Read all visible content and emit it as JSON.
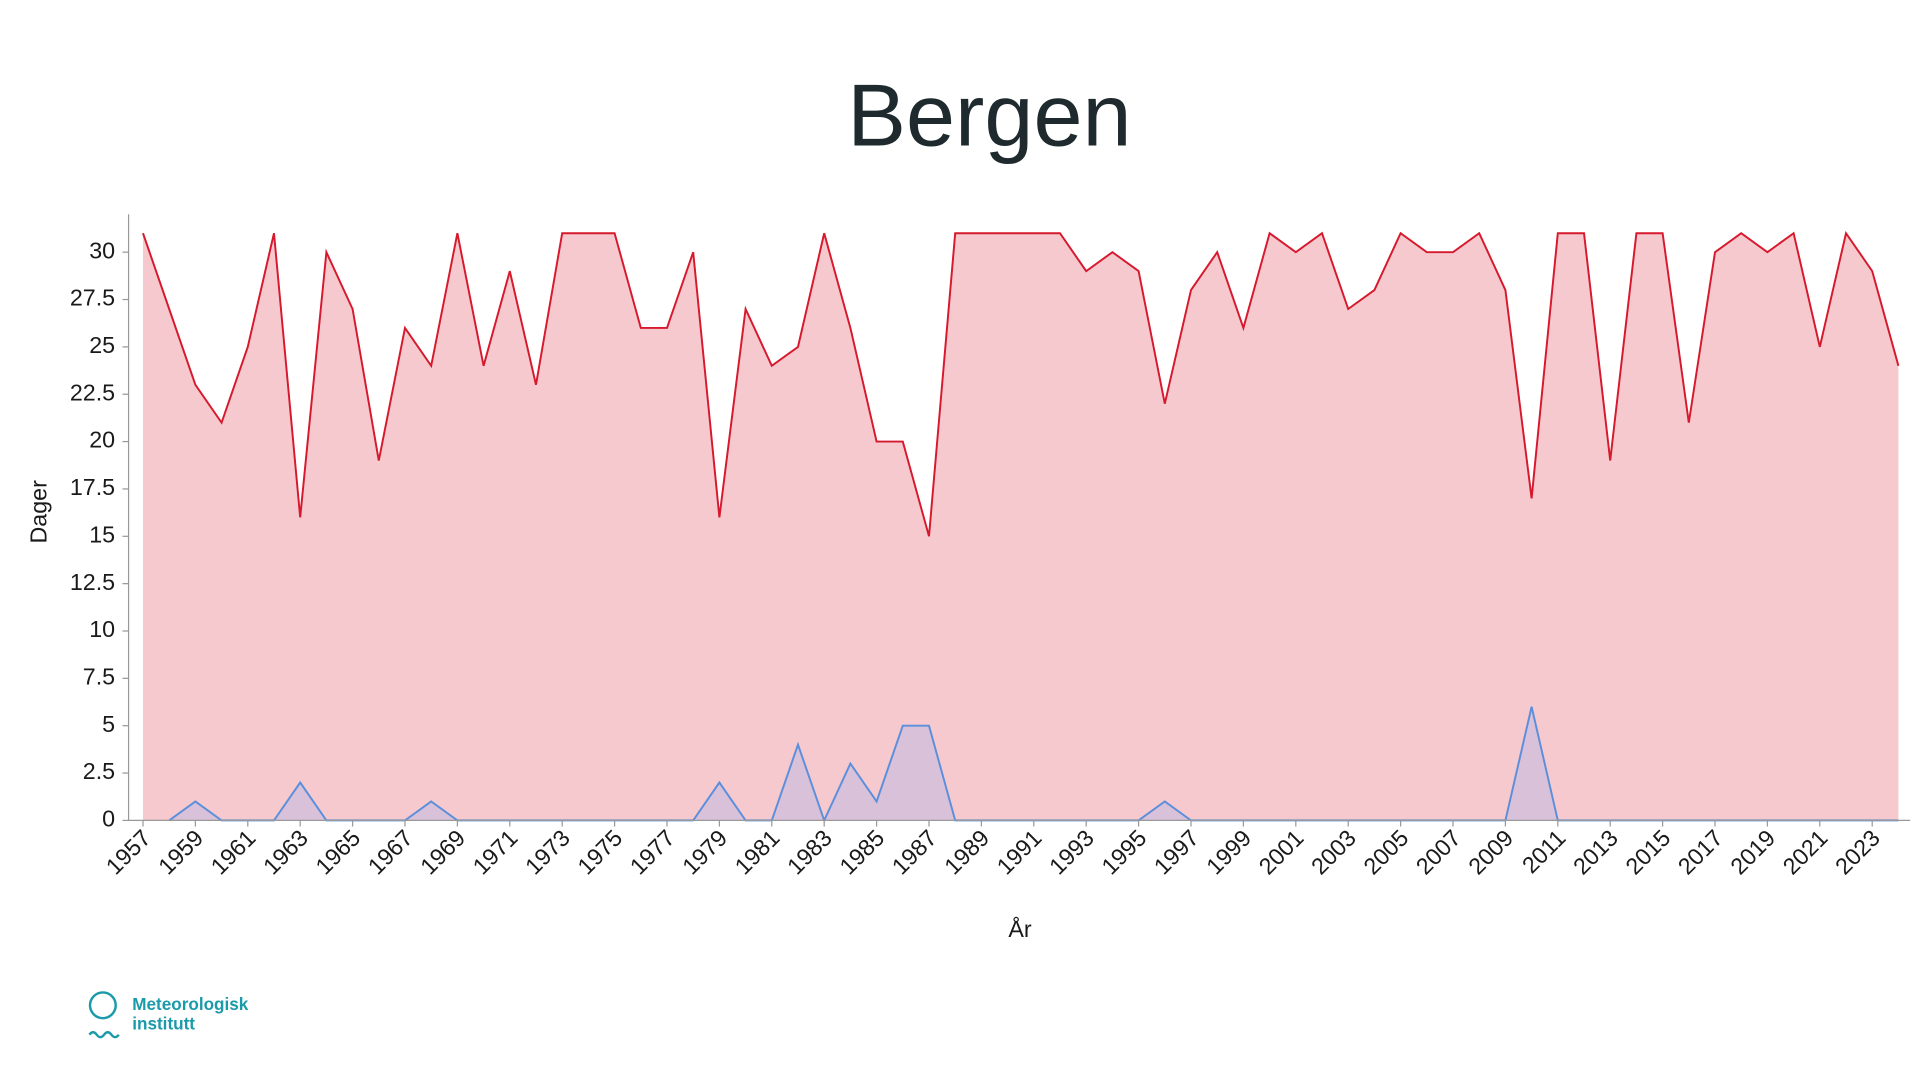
{
  "chart_data": {
    "type": "area",
    "title": "Bergen",
    "xlabel": "År",
    "ylabel": "Dager",
    "x": [
      1957,
      1958,
      1959,
      1960,
      1961,
      1962,
      1963,
      1964,
      1965,
      1966,
      1967,
      1968,
      1969,
      1970,
      1971,
      1972,
      1973,
      1974,
      1975,
      1976,
      1977,
      1978,
      1979,
      1980,
      1981,
      1982,
      1983,
      1984,
      1985,
      1986,
      1987,
      1988,
      1989,
      1990,
      1991,
      1992,
      1993,
      1994,
      1995,
      1996,
      1997,
      1998,
      1999,
      2000,
      2001,
      2002,
      2003,
      2004,
      2005,
      2006,
      2007,
      2008,
      2009,
      2010,
      2011,
      2012,
      2013,
      2014,
      2015,
      2016,
      2017,
      2018,
      2019,
      2020,
      2021,
      2022,
      2023,
      2024
    ],
    "series": [
      {
        "color": "#d7192d",
        "fill": "#f5c9ce",
        "values": [
          31,
          27,
          23,
          21,
          25,
          31,
          16,
          30,
          27,
          19,
          26,
          24,
          31,
          24,
          29,
          23,
          31,
          31,
          31,
          26,
          26,
          30,
          16,
          27,
          24,
          25,
          31,
          26,
          20,
          20,
          15,
          31,
          31,
          31,
          31,
          31,
          29,
          30,
          29,
          22,
          28,
          30,
          26,
          31,
          30,
          31,
          27,
          28,
          31,
          30,
          30,
          31,
          28,
          17,
          31,
          31,
          19,
          31,
          31,
          21,
          30,
          31,
          30,
          31,
          25,
          31,
          29,
          24
        ]
      },
      {
        "color": "#5b8fdc",
        "fill": "#d3bfda",
        "values": [
          null,
          0,
          1,
          0,
          0,
          0,
          2,
          0,
          0,
          0,
          0,
          1,
          0,
          0,
          0,
          0,
          0,
          0,
          0,
          0,
          0,
          0,
          2,
          0,
          0,
          4,
          0,
          3,
          1,
          5,
          5,
          0,
          0,
          0,
          0,
          0,
          0,
          0,
          0,
          1,
          0,
          0,
          0,
          0,
          0,
          0,
          0,
          0,
          0,
          0,
          0,
          0,
          0,
          6,
          0,
          0,
          0,
          0,
          0,
          0,
          0,
          0,
          0,
          0,
          0,
          0,
          0,
          0
        ]
      }
    ],
    "xlim": [
      1956.45,
      2024.45
    ],
    "xticks": [
      1957,
      1959,
      1961,
      1963,
      1965,
      1967,
      1969,
      1971,
      1973,
      1975,
      1977,
      1979,
      1981,
      1983,
      1985,
      1987,
      1989,
      1991,
      1993,
      1995,
      1997,
      1999,
      2001,
      2003,
      2005,
      2007,
      2009,
      2011,
      2013,
      2015,
      2017,
      2019,
      2021,
      2023
    ],
    "ylim": [
      0,
      32
    ],
    "yticks": [
      0,
      2.5,
      5,
      7.5,
      10,
      12.5,
      15,
      17.5,
      20,
      22.5,
      25,
      27.5,
      30
    ],
    "grid": false
  },
  "logo": {
    "lines": [
      "Meteorologisk",
      "institutt"
    ],
    "color": "#1b9aaa"
  }
}
